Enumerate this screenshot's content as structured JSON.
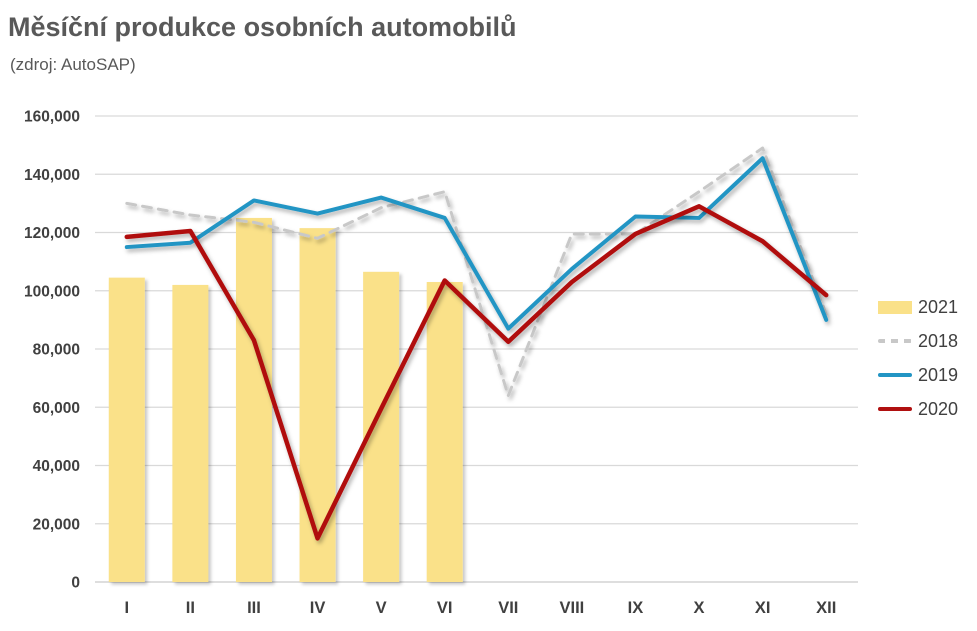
{
  "header": {
    "title": "Měsíční produkce osobních automobilů",
    "subtitle": "(zdroj: AutoSAP)"
  },
  "chart_data": {
    "type": "combo-bar-line",
    "categories": [
      "I",
      "II",
      "III",
      "IV",
      "V",
      "VI",
      "VII",
      "VIII",
      "IX",
      "X",
      "XI",
      "XII"
    ],
    "bar_series": {
      "name": "2021",
      "color": "#FAE189",
      "values": [
        104500,
        102000,
        125000,
        121500,
        106500,
        103000,
        null,
        null,
        null,
        null,
        null,
        null
      ]
    },
    "line_series": [
      {
        "name": "2018",
        "color": "#C8C8C8",
        "style": "dashed",
        "width": 3,
        "values": [
          130000,
          126000,
          123500,
          118000,
          128500,
          134000,
          64000,
          119500,
          119500,
          134000,
          149000,
          92000
        ]
      },
      {
        "name": "2019",
        "color": "#2295C4",
        "style": "solid",
        "width": 4,
        "values": [
          115000,
          116500,
          131000,
          126500,
          132000,
          125000,
          87000,
          107500,
          125500,
          125000,
          145500,
          90000
        ]
      },
      {
        "name": "2020",
        "color": "#B01010",
        "style": "solid",
        "width": 4.5,
        "values": [
          118500,
          120500,
          83000,
          15000,
          59500,
          103500,
          82500,
          103000,
          119500,
          129000,
          117000,
          98500
        ]
      }
    ],
    "ylim": [
      0,
      160000
    ],
    "ytick_step": 20000,
    "ytick_labels": [
      "0",
      "20,000",
      "40,000",
      "60,000",
      "80,000",
      "100,000",
      "120,000",
      "140,000",
      "160,000"
    ],
    "grid": true,
    "legend": [
      "2021",
      "2018",
      "2019",
      "2020"
    ],
    "legend_position": "right",
    "xlabel": "",
    "ylabel": ""
  },
  "colors": {
    "title": "#595959",
    "axis_text": "#404040",
    "gridline": "#D9D9D9",
    "baseline": "#C9C9C9",
    "background": "#ffffff"
  }
}
